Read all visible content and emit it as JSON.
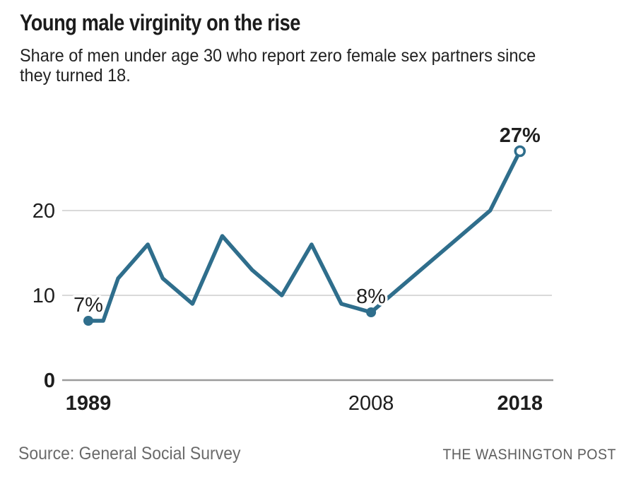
{
  "header": {
    "title": "Young male virginity on the rise",
    "subtitle_lines": [
      "Share of men under age 30 who report zero female sex partners since",
      "they turned 18."
    ]
  },
  "footer": {
    "source": "Source: General Social Survey",
    "credit": "THE WASHINGTON POST"
  },
  "style": {
    "line_color": "#2f6e8c",
    "gridline_color": "#d9d9d9",
    "axis_line_color": "#9b9b9b",
    "text_color": "#1e1e1e",
    "muted_text_color": "#6a6a6a"
  },
  "chart_data": {
    "type": "line",
    "title": "Young male virginity on the rise",
    "subtitle": "Share of men under age 30 who report zero female sex partners since they turned 18.",
    "unit": "%",
    "x": [
      1989,
      1990,
      1991,
      1993,
      1994,
      1996,
      1998,
      2000,
      2002,
      2004,
      2006,
      2008,
      2016,
      2018
    ],
    "values": [
      7,
      7,
      12,
      16,
      12,
      9,
      17,
      13,
      10,
      16,
      9,
      8,
      20,
      27
    ],
    "xlabel": "",
    "ylabel": "",
    "xlim": [
      1987.2,
      2020.1
    ],
    "ylim": [
      0,
      29
    ],
    "grid": "horizontal",
    "legend": "none",
    "line_color": "#2f6e8c",
    "y_ticks": [
      {
        "value": 0,
        "label": "0",
        "bold": true
      },
      {
        "value": 10,
        "label": "10",
        "bold": false
      },
      {
        "value": 20,
        "label": "20",
        "bold": false
      }
    ],
    "x_ticks": [
      {
        "year": 1989,
        "label": "1989",
        "bold": true
      },
      {
        "year": 2008,
        "label": "2008",
        "bold": false
      },
      {
        "year": 2018,
        "label": "2018",
        "bold": true
      }
    ],
    "annotations": [
      {
        "x": 1989,
        "value": 7,
        "label": "7%",
        "marker": "filled",
        "bold": false
      },
      {
        "x": 2008,
        "value": 8,
        "label": "8%",
        "marker": "filled",
        "bold": false
      },
      {
        "x": 2018,
        "value": 27,
        "label": "27%",
        "marker": "open",
        "bold": true
      }
    ],
    "source": "Source: General Social Survey",
    "credit": "THE WASHINGTON POST"
  }
}
